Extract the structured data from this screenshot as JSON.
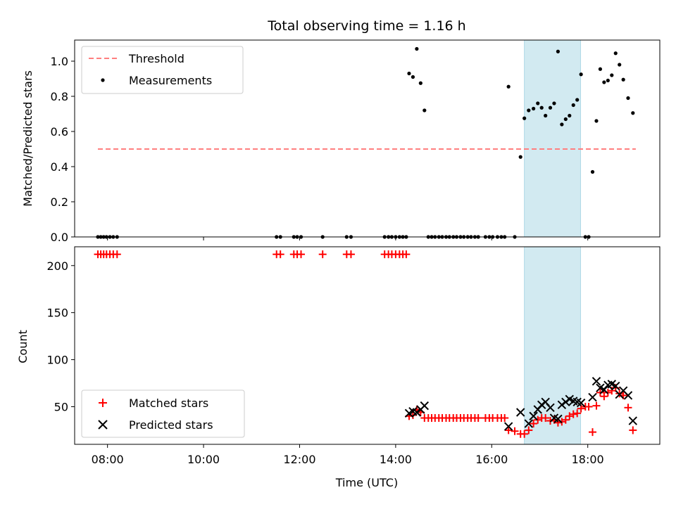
{
  "chart_data": [
    {
      "id": "top",
      "type": "scatter",
      "title": "Total observing time = 1.16 h",
      "xlabel": "",
      "ylabel": "Matched/Predicted stars",
      "xlim": [
        7.316,
        19.5
      ],
      "ylim": [
        0,
        1.12
      ],
      "yticks": [
        0.0,
        0.2,
        0.4,
        0.6,
        0.8,
        1.0
      ],
      "ytick_labels": [
        "0.0",
        "0.2",
        "0.4",
        "0.6",
        "0.8",
        "1.0"
      ],
      "xticks": [
        8,
        10,
        12,
        14,
        16,
        18
      ],
      "highlight_span": [
        16.68,
        17.85
      ],
      "highlight_color": "#add8e6",
      "threshold": {
        "name": "Threshold",
        "y": 0.5,
        "x": [
          7.8,
          19.0
        ],
        "color": "#ff7f7f"
      },
      "series": [
        {
          "name": "Measurements",
          "color": "#000000",
          "points": [
            [
              7.8,
              0
            ],
            [
              7.86,
              0
            ],
            [
              7.92,
              0
            ],
            [
              7.98,
              0
            ],
            [
              8.05,
              0
            ],
            [
              8.12,
              0
            ],
            [
              8.2,
              0
            ],
            [
              11.52,
              0
            ],
            [
              11.6,
              0
            ],
            [
              11.88,
              0
            ],
            [
              11.95,
              0
            ],
            [
              12.03,
              0
            ],
            [
              12.48,
              0
            ],
            [
              12.98,
              0
            ],
            [
              13.07,
              0
            ],
            [
              13.77,
              0
            ],
            [
              13.85,
              0
            ],
            [
              13.92,
              0
            ],
            [
              14.0,
              0
            ],
            [
              14.08,
              0
            ],
            [
              14.15,
              0
            ],
            [
              14.22,
              0
            ],
            [
              14.28,
              0.93
            ],
            [
              14.36,
              0.91
            ],
            [
              14.44,
              1.07
            ],
            [
              14.52,
              0.875
            ],
            [
              14.6,
              0.72
            ],
            [
              14.68,
              0
            ],
            [
              14.75,
              0
            ],
            [
              14.82,
              0
            ],
            [
              14.9,
              0
            ],
            [
              14.97,
              0
            ],
            [
              15.05,
              0
            ],
            [
              15.12,
              0
            ],
            [
              15.2,
              0
            ],
            [
              15.27,
              0
            ],
            [
              15.35,
              0
            ],
            [
              15.42,
              0
            ],
            [
              15.5,
              0
            ],
            [
              15.57,
              0
            ],
            [
              15.65,
              0
            ],
            [
              15.72,
              0
            ],
            [
              15.87,
              0
            ],
            [
              15.95,
              0
            ],
            [
              16.02,
              0
            ],
            [
              16.12,
              0
            ],
            [
              16.2,
              0
            ],
            [
              16.27,
              0
            ],
            [
              16.35,
              0.855
            ],
            [
              16.48,
              0
            ],
            [
              16.6,
              0.455
            ],
            [
              16.68,
              0.675
            ],
            [
              16.77,
              0.72
            ],
            [
              16.87,
              0.73
            ],
            [
              16.96,
              0.76
            ],
            [
              17.04,
              0.735
            ],
            [
              17.12,
              0.69
            ],
            [
              17.22,
              0.735
            ],
            [
              17.3,
              0.76
            ],
            [
              17.38,
              1.055
            ],
            [
              17.46,
              0.64
            ],
            [
              17.54,
              0.67
            ],
            [
              17.62,
              0.69
            ],
            [
              17.7,
              0.75
            ],
            [
              17.78,
              0.78
            ],
            [
              17.86,
              0.925
            ],
            [
              17.95,
              0
            ],
            [
              18.02,
              0
            ],
            [
              18.1,
              0.37
            ],
            [
              18.18,
              0.66
            ],
            [
              18.26,
              0.955
            ],
            [
              18.34,
              0.88
            ],
            [
              18.42,
              0.89
            ],
            [
              18.5,
              0.92
            ],
            [
              18.58,
              1.045
            ],
            [
              18.66,
              0.98
            ],
            [
              18.74,
              0.895
            ],
            [
              18.84,
              0.79
            ],
            [
              18.94,
              0.705
            ]
          ]
        }
      ],
      "legend": {
        "position": "upper-left",
        "entries": [
          "Threshold",
          "Measurements"
        ]
      }
    },
    {
      "id": "bottom",
      "type": "scatter",
      "title": "",
      "xlabel": "Time (UTC)",
      "ylabel": "Count",
      "xlim": [
        7.316,
        19.5
      ],
      "ylim": [
        10,
        220
      ],
      "yticks": [
        50,
        100,
        150,
        200
      ],
      "ytick_labels": [
        "50",
        "100",
        "150",
        "200"
      ],
      "xticks": [
        8,
        10,
        12,
        14,
        16,
        18
      ],
      "xtick_labels": [
        "08:00",
        "10:00",
        "12:00",
        "14:00",
        "16:00",
        "18:00"
      ],
      "highlight_span": [
        16.68,
        17.85
      ],
      "highlight_color": "#add8e6",
      "series": [
        {
          "name": "Matched stars",
          "marker": "plus",
          "color": "#ff0000",
          "points": [
            [
              7.8,
              212
            ],
            [
              7.86,
              212
            ],
            [
              7.92,
              212
            ],
            [
              7.98,
              212
            ],
            [
              8.05,
              212
            ],
            [
              8.12,
              212
            ],
            [
              8.2,
              212
            ],
            [
              11.52,
              212
            ],
            [
              11.6,
              212
            ],
            [
              11.88,
              212
            ],
            [
              11.95,
              212
            ],
            [
              12.03,
              212
            ],
            [
              12.48,
              212
            ],
            [
              12.98,
              212
            ],
            [
              13.07,
              212
            ],
            [
              13.77,
              212
            ],
            [
              13.85,
              212
            ],
            [
              13.92,
              212
            ],
            [
              14.0,
              212
            ],
            [
              14.08,
              212
            ],
            [
              14.15,
              212
            ],
            [
              14.22,
              212
            ],
            [
              14.28,
              40
            ],
            [
              14.36,
              41
            ],
            [
              14.44,
              47
            ],
            [
              14.52,
              44
            ],
            [
              14.6,
              38
            ],
            [
              14.68,
              38
            ],
            [
              14.75,
              38
            ],
            [
              14.82,
              38
            ],
            [
              14.9,
              38
            ],
            [
              14.97,
              38
            ],
            [
              15.05,
              38
            ],
            [
              15.12,
              38
            ],
            [
              15.2,
              38
            ],
            [
              15.27,
              38
            ],
            [
              15.35,
              38
            ],
            [
              15.42,
              38
            ],
            [
              15.5,
              38
            ],
            [
              15.57,
              38
            ],
            [
              15.65,
              38
            ],
            [
              15.72,
              38
            ],
            [
              15.87,
              38
            ],
            [
              15.95,
              38
            ],
            [
              16.02,
              38
            ],
            [
              16.12,
              38
            ],
            [
              16.2,
              38
            ],
            [
              16.27,
              38
            ],
            [
              16.35,
              25
            ],
            [
              16.48,
              24
            ],
            [
              16.6,
              21
            ],
            [
              16.68,
              21
            ],
            [
              16.77,
              25
            ],
            [
              16.87,
              32
            ],
            [
              16.96,
              36
            ],
            [
              17.04,
              38
            ],
            [
              17.12,
              38
            ],
            [
              17.22,
              35
            ],
            [
              17.3,
              36
            ],
            [
              17.38,
              33
            ],
            [
              17.46,
              34
            ],
            [
              17.54,
              36
            ],
            [
              17.62,
              40
            ],
            [
              17.7,
              42
            ],
            [
              17.78,
              43
            ],
            [
              17.86,
              48
            ],
            [
              17.95,
              50
            ],
            [
              18.02,
              50
            ],
            [
              18.1,
              23
            ],
            [
              18.18,
              51
            ],
            [
              18.26,
              65
            ],
            [
              18.34,
              61
            ],
            [
              18.42,
              65
            ],
            [
              18.5,
              67
            ],
            [
              18.58,
              70
            ],
            [
              18.66,
              64
            ],
            [
              18.74,
              62
            ],
            [
              18.84,
              49
            ],
            [
              18.94,
              25
            ]
          ]
        },
        {
          "name": "Predicted stars",
          "marker": "x",
          "color": "#000000",
          "points": [
            [
              14.28,
              43
            ],
            [
              14.36,
              45
            ],
            [
              14.44,
              44
            ],
            [
              14.52,
              47
            ],
            [
              14.6,
              51
            ],
            [
              16.35,
              29
            ],
            [
              16.6,
              44
            ],
            [
              16.77,
              32
            ],
            [
              16.87,
              40
            ],
            [
              16.96,
              47
            ],
            [
              17.04,
              52
            ],
            [
              17.12,
              55
            ],
            [
              17.22,
              49
            ],
            [
              17.3,
              38
            ],
            [
              17.38,
              37
            ],
            [
              17.46,
              52
            ],
            [
              17.54,
              55
            ],
            [
              17.62,
              58
            ],
            [
              17.7,
              56
            ],
            [
              17.78,
              55
            ],
            [
              17.86,
              54
            ],
            [
              18.1,
              60
            ],
            [
              18.18,
              77
            ],
            [
              18.26,
              70
            ],
            [
              18.34,
              68
            ],
            [
              18.42,
              73
            ],
            [
              18.5,
              74
            ],
            [
              18.58,
              72
            ],
            [
              18.66,
              63
            ],
            [
              18.74,
              67
            ],
            [
              18.84,
              62
            ],
            [
              18.94,
              35
            ]
          ]
        }
      ],
      "legend": {
        "position": "lower-left",
        "entries": [
          "Matched stars",
          "Predicted stars"
        ]
      }
    }
  ]
}
